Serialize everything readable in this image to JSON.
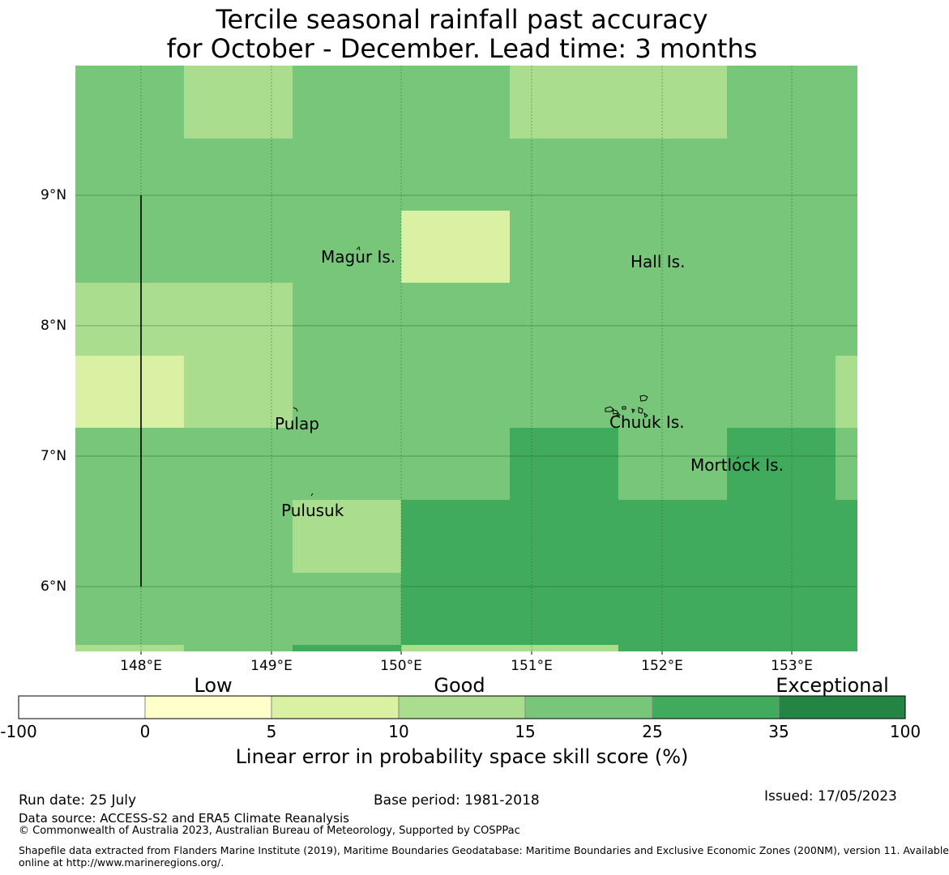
{
  "title": {
    "line1": "Tercile seasonal rainfall past accuracy",
    "line2": "for October - December. Lead time: 3 months"
  },
  "map": {
    "lat_labels": [
      "9°N",
      "8°N",
      "7°N",
      "6°N"
    ],
    "lon_labels": [
      "148°E",
      "149°E",
      "150°E",
      "151°E",
      "152°E",
      "153°E"
    ],
    "places": [
      "Magur Is.",
      "Hall Is.",
      "Pulap",
      "Chuuk Is.",
      "Mortlock Is.",
      "Pulusuk"
    ],
    "colors": {
      "low": "#daf0a2",
      "good_low": "#abdd8e",
      "good": "#78c679",
      "exceptional_low": "#41ab5d",
      "exceptional_high": "#238443"
    }
  },
  "colorbar": {
    "categories": [
      "Low",
      "Good",
      "Exceptional"
    ],
    "ticks": [
      "-100",
      "0",
      "5",
      "10",
      "15",
      "25",
      "35",
      "100"
    ],
    "colors": [
      "#ffffff",
      "#ffffcc",
      "#daf0a2",
      "#abdd8e",
      "#78c679",
      "#41ab5d",
      "#238443"
    ],
    "title": "Linear error in probability space skill score (%)"
  },
  "footer": {
    "run_date": "Run date: 25 July",
    "base_period": "Base period: 1981-2018",
    "issued": "Issued: 17/05/2023",
    "data_source": "Data source: ACCESS-S2 and ERA5 Climate Reanalysis",
    "copyright": "© Commonwealth of Australia 2023, Australian Bureau of Meteorology, Supported by COSPPac",
    "shapefile_line1": "Shapefile data extracted from Flanders Marine Institute (2019), Maritime Boundaries Geodatabase: Maritime Boundaries and Exclusive Economic Zones (200NM), version 11. Available",
    "shapefile_line2": "online at http://www.marineregions.org/."
  }
}
